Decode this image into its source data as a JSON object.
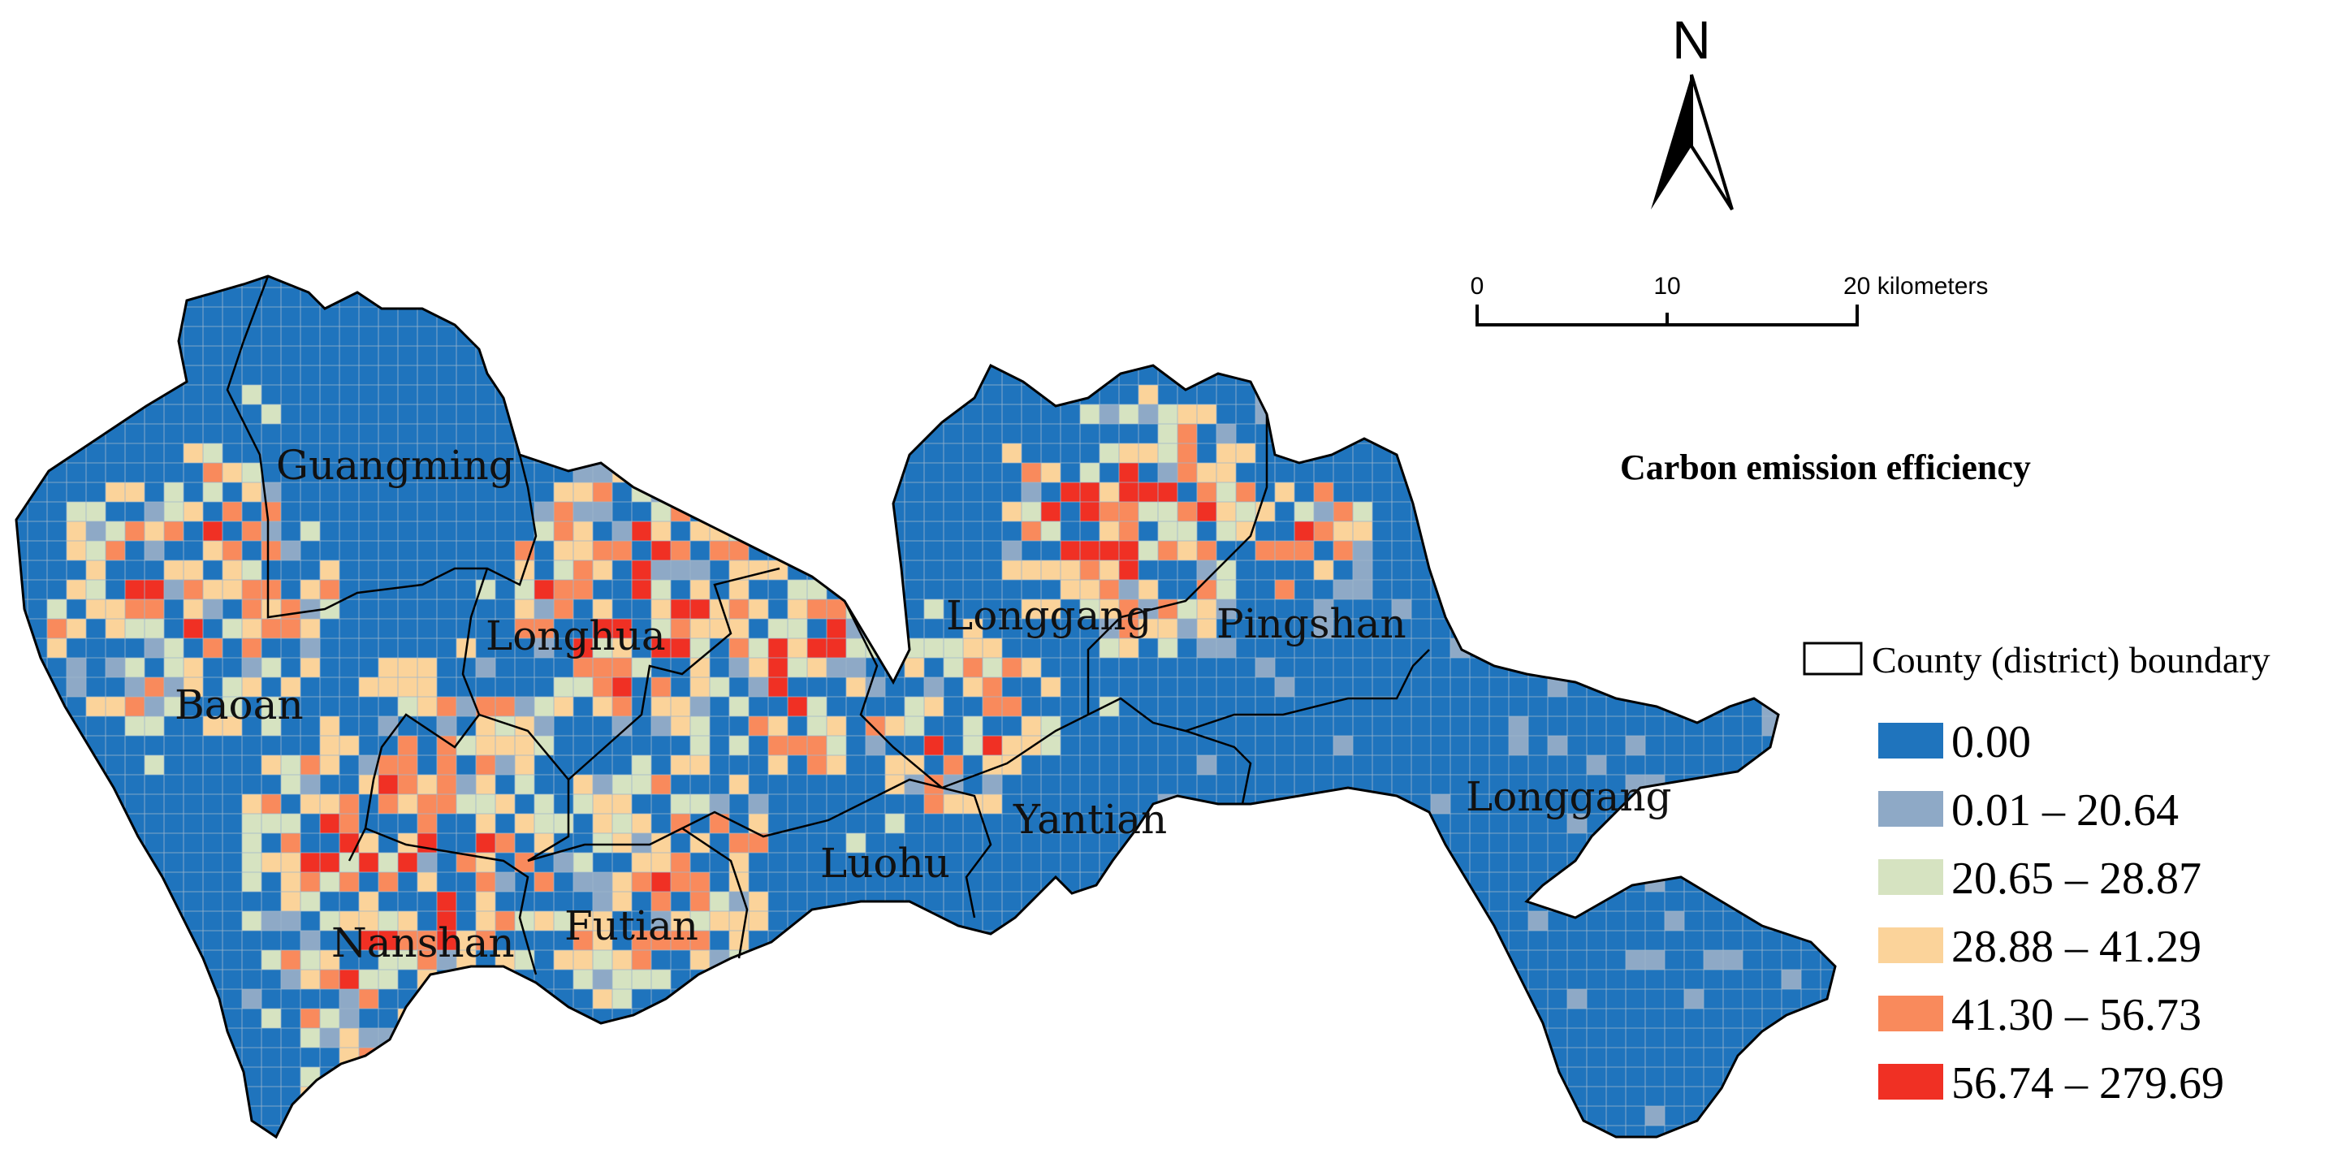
{
  "north_arrow": {
    "label": "N"
  },
  "scale_bar": {
    "ticks": [
      "0",
      "10",
      "20 kilometers"
    ]
  },
  "legend": {
    "title": "Carbon emission efficiency",
    "boundary_label": "County (district) boundary",
    "classes": [
      {
        "label": "0.00",
        "color": "#1f74bd"
      },
      {
        "label": "0.01 – 20.64",
        "color": "#8ea9c6"
      },
      {
        "label": "20.65 – 28.87",
        "color": "#d6e3c1"
      },
      {
        "label": "28.88 – 41.29",
        "color": "#fbd39a"
      },
      {
        "label": "41.30 – 56.73",
        "color": "#f98a5c"
      },
      {
        "label": "56.74 – 279.69",
        "color": "#f03024"
      }
    ]
  },
  "districts": [
    {
      "name": "Guangming"
    },
    {
      "name": "Longhua"
    },
    {
      "name": "Baoan"
    },
    {
      "name": "Nanshan"
    },
    {
      "name": "Futian"
    },
    {
      "name": "Luohu"
    },
    {
      "name": "Yantian"
    },
    {
      "name": "Longgang"
    },
    {
      "name": "Pingshan"
    },
    {
      "name": "Longgang"
    }
  ]
}
